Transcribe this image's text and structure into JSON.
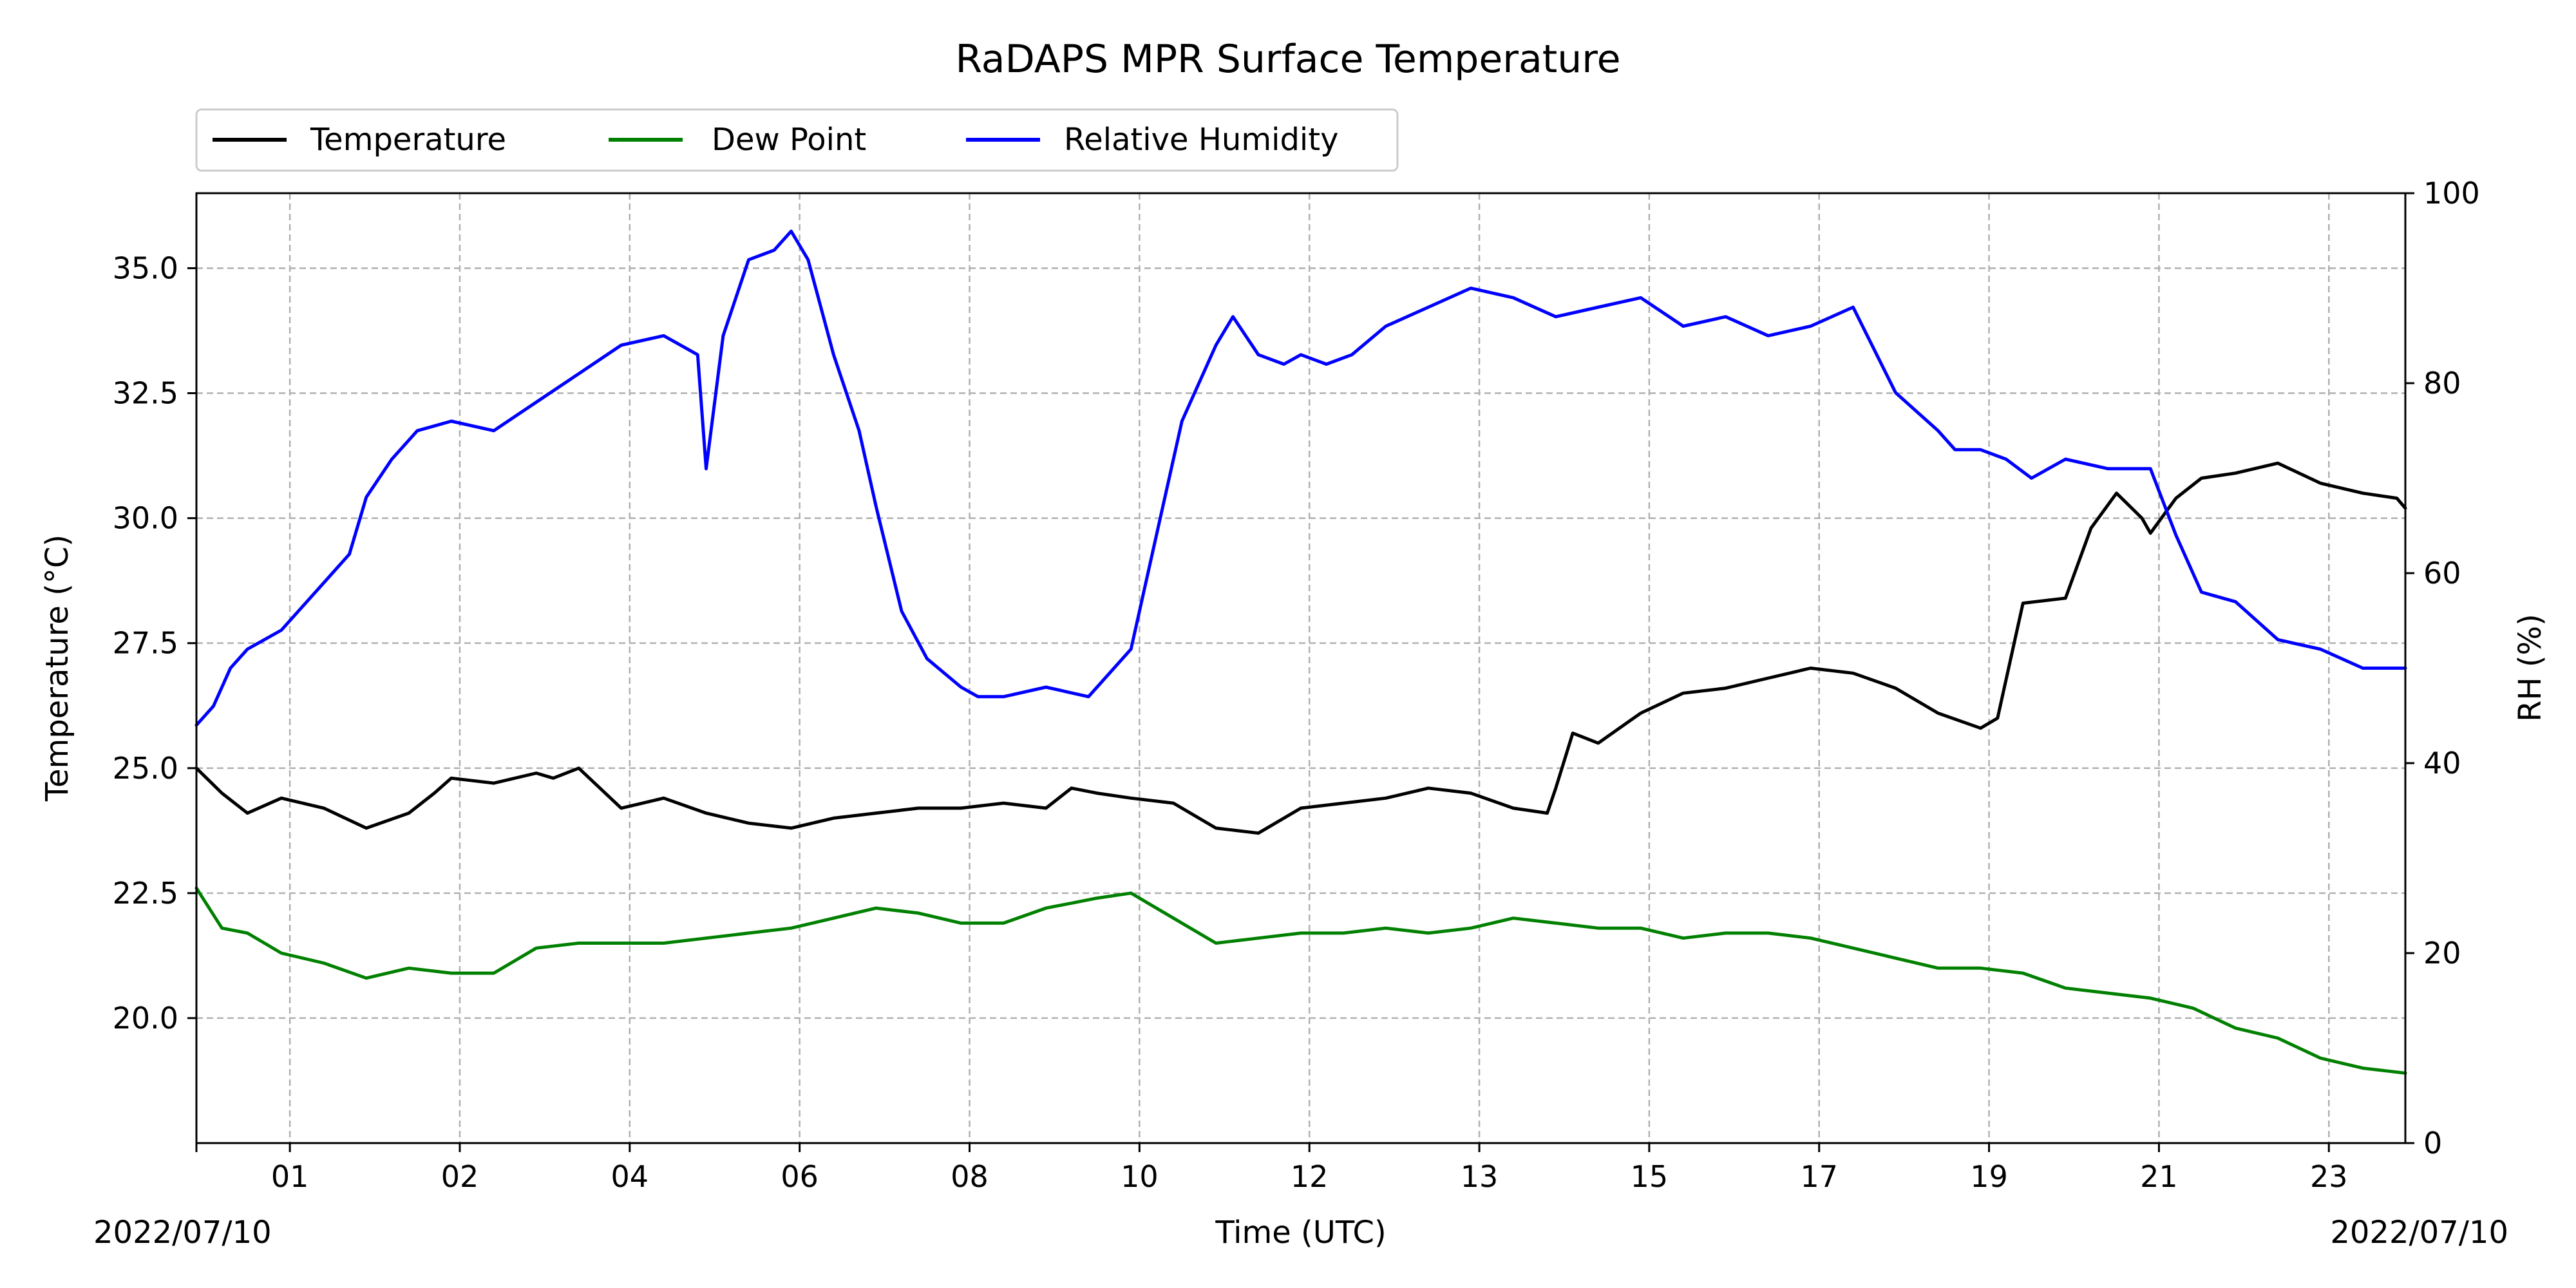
{
  "chart_data": {
    "type": "line",
    "title": "RaDAPS MPR Surface Temperature",
    "xlabel": "Time (UTC)",
    "ylabel": "Temperature ($^\\circ$C)",
    "ylabel_display": "Temperature (°C)",
    "y2label": "RH (%)",
    "date_start_label": "2022/07/10",
    "date_end_label": "2022/07/10",
    "xlim": [
      0,
      26
    ],
    "ylim": [
      17.5,
      36.5
    ],
    "y2lim": [
      0,
      100
    ],
    "grid": true,
    "legend_placement": "top-left, above plot",
    "x_ticks": [
      {
        "pos": 1.1,
        "label": "01"
      },
      {
        "pos": 3.1,
        "label": "02"
      },
      {
        "pos": 5.1,
        "label": "04"
      },
      {
        "pos": 7.1,
        "label": "06"
      },
      {
        "pos": 9.1,
        "label": "08"
      },
      {
        "pos": 11.1,
        "label": "10"
      },
      {
        "pos": 13.1,
        "label": "12"
      },
      {
        "pos": 15.1,
        "label": "13"
      },
      {
        "pos": 17.1,
        "label": "15"
      },
      {
        "pos": 19.1,
        "label": "17"
      },
      {
        "pos": 21.1,
        "label": "19"
      },
      {
        "pos": 23.1,
        "label": "21"
      },
      {
        "pos": 25.1,
        "label": "23"
      }
    ],
    "y_ticks": [
      20.0,
      22.5,
      25.0,
      27.5,
      30.0,
      32.5,
      35.0
    ],
    "y_tick_labels": [
      "20.0",
      "22.5",
      "25.0",
      "27.5",
      "30.0",
      "32.5",
      "35.0"
    ],
    "y2_ticks": [
      0,
      20,
      40,
      60,
      80,
      100
    ],
    "y2_tick_labels": [
      "0",
      "20",
      "40",
      "60",
      "80",
      "100"
    ],
    "series": [
      {
        "name": "Temperature",
        "axis": "left",
        "color": "#000000",
        "x": [
          0,
          0.3,
          0.6,
          1.0,
          1.5,
          2.0,
          2.5,
          2.8,
          3.0,
          3.5,
          4.0,
          4.2,
          4.5,
          5.0,
          5.5,
          6.0,
          6.5,
          7.0,
          7.5,
          8.0,
          8.5,
          9.0,
          9.5,
          10.0,
          10.3,
          10.6,
          11.0,
          11.5,
          12.0,
          12.5,
          13.0,
          13.5,
          14.0,
          14.5,
          15.0,
          15.5,
          15.9,
          16.0,
          16.2,
          16.5,
          17.0,
          17.5,
          18.0,
          18.5,
          19.0,
          19.5,
          20.0,
          20.5,
          21.0,
          21.2,
          21.5,
          22.0,
          22.3,
          22.6,
          22.9,
          23.0,
          23.3,
          23.6,
          24.0,
          24.5,
          25.0,
          25.5,
          25.9,
          26.0
        ],
        "y": [
          25.0,
          24.5,
          24.1,
          24.4,
          24.2,
          23.8,
          24.1,
          24.5,
          24.8,
          24.7,
          24.9,
          24.8,
          25.0,
          24.2,
          24.4,
          24.1,
          23.9,
          23.8,
          24.0,
          24.1,
          24.2,
          24.2,
          24.3,
          24.2,
          24.6,
          24.5,
          24.4,
          24.3,
          23.8,
          23.7,
          24.2,
          24.3,
          24.4,
          24.6,
          24.5,
          24.2,
          24.1,
          24.6,
          25.7,
          25.5,
          26.1,
          26.5,
          26.6,
          26.8,
          27.0,
          26.9,
          26.6,
          26.1,
          25.8,
          26.0,
          28.3,
          28.4,
          29.8,
          30.5,
          30.0,
          29.7,
          30.4,
          30.8,
          30.9,
          31.1,
          30.7,
          30.5,
          30.4,
          30.2
        ]
      },
      {
        "name": "Dew Point",
        "axis": "left",
        "color": "#008000",
        "x": [
          0,
          0.3,
          0.6,
          1.0,
          1.5,
          2.0,
          2.5,
          3.0,
          3.5,
          4.0,
          4.5,
          5.0,
          5.5,
          6.0,
          6.5,
          7.0,
          7.5,
          8.0,
          8.5,
          9.0,
          9.5,
          10.0,
          10.3,
          10.6,
          11.0,
          11.5,
          12.0,
          12.5,
          13.0,
          13.5,
          14.0,
          14.5,
          15.0,
          15.5,
          16.0,
          16.5,
          17.0,
          17.5,
          18.0,
          18.5,
          19.0,
          19.5,
          20.0,
          20.5,
          21.0,
          21.5,
          22.0,
          22.5,
          23.0,
          23.5,
          24.0,
          24.5,
          25.0,
          25.5,
          26.0
        ],
        "y": [
          22.6,
          21.8,
          21.7,
          21.3,
          21.1,
          20.8,
          21.0,
          20.9,
          20.9,
          21.4,
          21.5,
          21.5,
          21.5,
          21.6,
          21.7,
          21.8,
          22.0,
          22.2,
          22.1,
          21.9,
          21.9,
          22.2,
          22.3,
          22.4,
          22.5,
          22.0,
          21.5,
          21.6,
          21.7,
          21.7,
          21.8,
          21.7,
          21.8,
          22.0,
          21.9,
          21.8,
          21.8,
          21.6,
          21.7,
          21.7,
          21.6,
          21.4,
          21.2,
          21.0,
          21.0,
          20.9,
          20.6,
          20.5,
          20.4,
          20.2,
          19.8,
          19.6,
          19.2,
          19.0,
          18.9
        ]
      },
      {
        "name": "Relative Humidity",
        "axis": "right",
        "color": "#0000ff",
        "x": [
          0,
          0.2,
          0.4,
          0.6,
          0.8,
          1.0,
          1.2,
          1.5,
          1.8,
          2.0,
          2.3,
          2.6,
          3.0,
          3.5,
          4.0,
          4.5,
          5.0,
          5.5,
          5.9,
          6.0,
          6.2,
          6.5,
          6.8,
          7.0,
          7.2,
          7.5,
          7.8,
          8.0,
          8.3,
          8.6,
          9.0,
          9.2,
          9.5,
          10.0,
          10.5,
          11.0,
          11.3,
          11.6,
          12.0,
          12.2,
          12.5,
          12.8,
          13.0,
          13.3,
          13.6,
          14.0,
          14.5,
          15.0,
          15.5,
          16.0,
          16.5,
          17.0,
          17.5,
          18.0,
          18.5,
          19.0,
          19.5,
          20.0,
          20.5,
          20.7,
          21.0,
          21.3,
          21.6,
          22.0,
          22.5,
          23.0,
          23.3,
          23.6,
          24.0,
          24.5,
          25.0,
          25.5,
          26.0
        ],
        "y": [
          44,
          46,
          50,
          52,
          53,
          54,
          56,
          59,
          62,
          68,
          72,
          75,
          76,
          75,
          78,
          81,
          84,
          85,
          83,
          71,
          85,
          93,
          94,
          96,
          93,
          83,
          75,
          67,
          56,
          51,
          48,
          47,
          47,
          48,
          47,
          52,
          64,
          76,
          84,
          87,
          83,
          82,
          83,
          82,
          83,
          86,
          88,
          90,
          89,
          87,
          88,
          89,
          86,
          87,
          85,
          86,
          88,
          79,
          75,
          73,
          73,
          72,
          70,
          72,
          71,
          71,
          64,
          58,
          57,
          53,
          52,
          50,
          50
        ]
      }
    ]
  }
}
